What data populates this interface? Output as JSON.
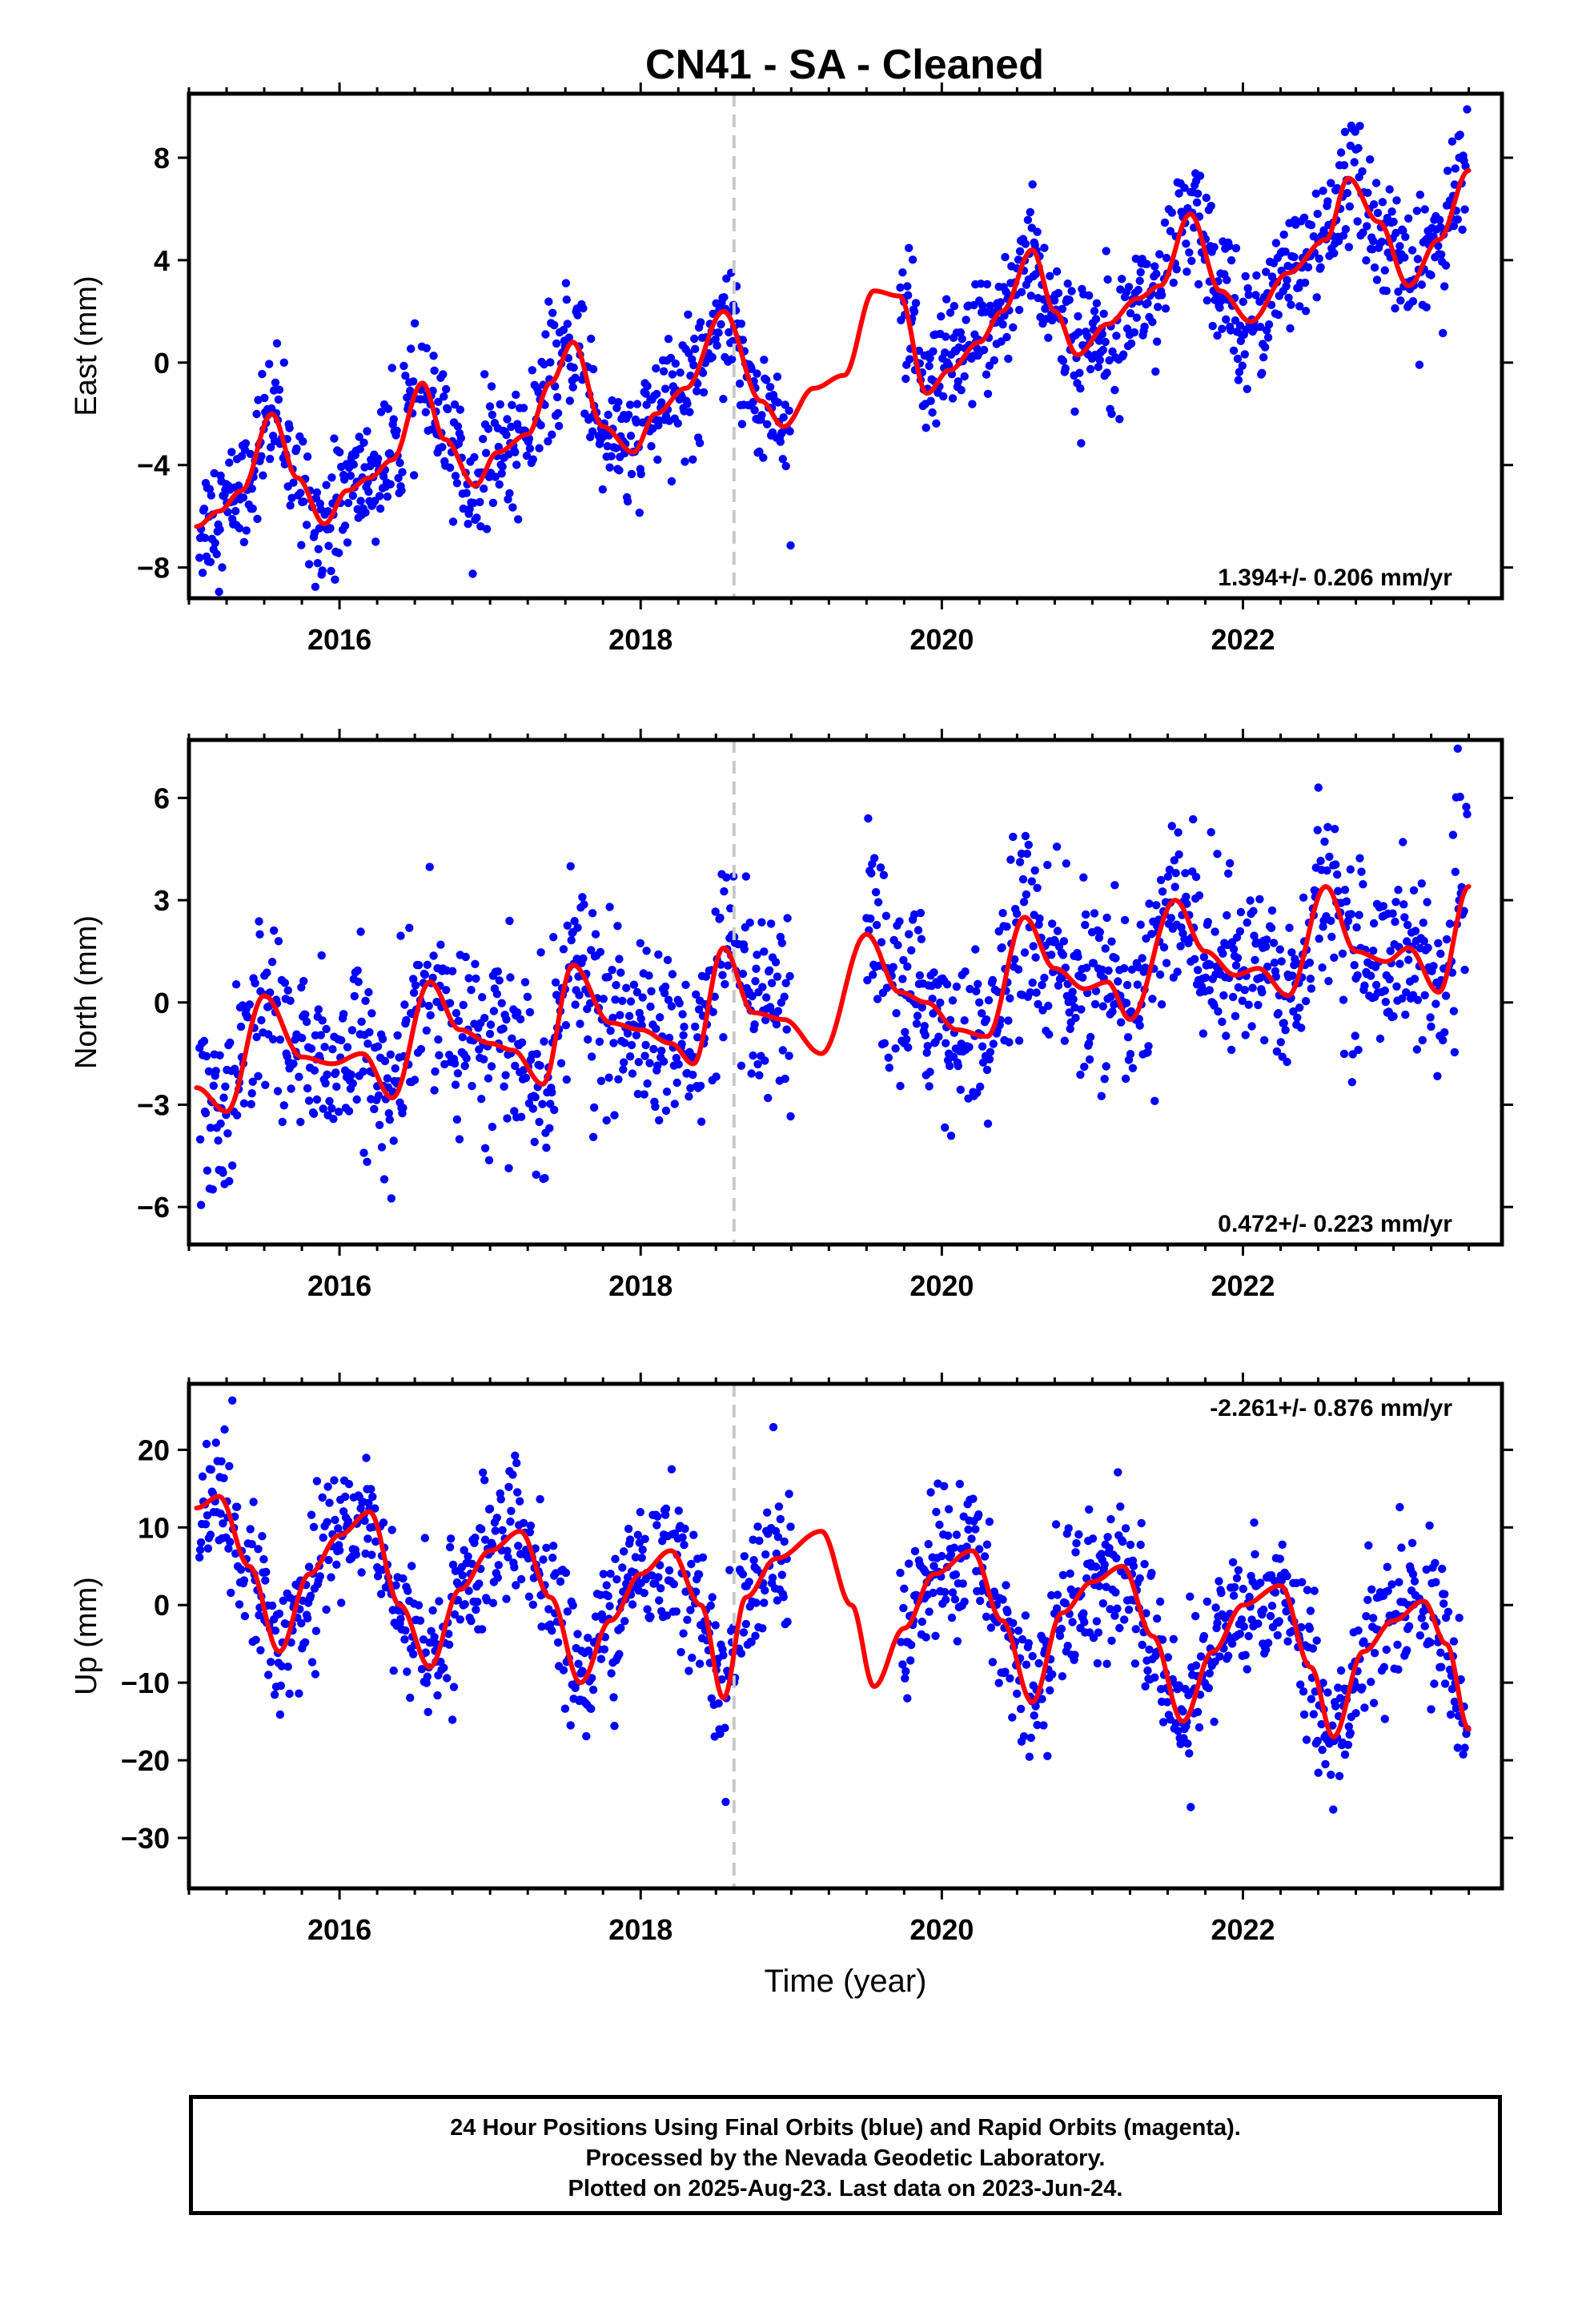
{
  "title": "CN41  - SA - Cleaned",
  "xlabel": "Time (year)",
  "footer": {
    "line1": "24 Hour Positions Using Final Orbits (blue) and Rapid Orbits (magenta).",
    "line2": "Processed by the Nevada Geodetic Laboratory.",
    "line3": "Plotted on 2025-Aug-23. Last data on 2023-Jun-24."
  },
  "colors": {
    "data": "#0000ff",
    "fit": "#ff0000",
    "event_line": "#c8c8c8",
    "frame": "#000000"
  },
  "chart_data": [
    {
      "type": "scatter",
      "component": "East",
      "ylabel": "East (mm)",
      "rate_text": "1.394+/- 0.206 mm/yr",
      "xlim": [
        2015.0,
        2023.72
      ],
      "ylim": [
        -9.2,
        10.5
      ],
      "yticks": [
        -8,
        -4,
        0,
        4,
        8
      ],
      "xticks": [
        2016,
        2018,
        2020,
        2022
      ],
      "event_line_x": 2018.62,
      "data_gap": [
        2019.0,
        2019.72
      ],
      "fit_curve": {
        "x": [
          2015.05,
          2015.2,
          2015.35,
          2015.55,
          2015.72,
          2015.9,
          2016.05,
          2016.2,
          2016.35,
          2016.55,
          2016.7,
          2016.9,
          2017.05,
          2017.25,
          2017.4,
          2017.55,
          2017.75,
          2017.95,
          2018.1,
          2018.3,
          2018.55,
          2018.8,
          2018.95,
          2019.15,
          2019.35,
          2019.55,
          2019.72,
          2019.9,
          2020.05,
          2020.25,
          2020.4,
          2020.6,
          2020.75,
          2020.9,
          2021.1,
          2021.3,
          2021.45,
          2021.65,
          2021.85,
          2022.05,
          2022.3,
          2022.55,
          2022.7,
          2022.9,
          2023.1,
          2023.3,
          2023.5
        ],
        "y": [
          -6.4,
          -5.8,
          -5.0,
          -2.0,
          -4.5,
          -6.3,
          -5.0,
          -4.5,
          -3.8,
          -0.8,
          -3.0,
          -4.8,
          -3.5,
          -2.8,
          -0.8,
          0.8,
          -2.5,
          -3.5,
          -2.0,
          -1.0,
          2.0,
          -1.5,
          -2.5,
          -1.0,
          -0.5,
          2.8,
          2.6,
          -1.2,
          -0.3,
          0.8,
          2.0,
          4.4,
          2.0,
          0.3,
          1.5,
          2.5,
          3.0,
          5.8,
          2.8,
          1.6,
          3.5,
          4.8,
          7.2,
          5.5,
          3.0,
          4.8,
          7.5
        ]
      },
      "scatter_trend": {
        "slope_mm_per_yr": 1.394,
        "noise_mm": 1.2
      }
    },
    {
      "type": "scatter",
      "component": "North",
      "ylabel": "North (mm)",
      "rate_text": "0.472+/- 0.223 mm/yr",
      "xlim": [
        2015.0,
        2023.72
      ],
      "ylim": [
        -7.1,
        7.7
      ],
      "yticks": [
        -6,
        -3,
        0,
        3,
        6
      ],
      "xticks": [
        2016,
        2018,
        2020,
        2022
      ],
      "event_line_x": 2018.62,
      "data_gap": [
        2019.0,
        2019.5
      ],
      "fit_curve": {
        "x": [
          2015.05,
          2015.25,
          2015.5,
          2015.75,
          2015.95,
          2016.15,
          2016.35,
          2016.6,
          2016.8,
          2017.0,
          2017.15,
          2017.35,
          2017.55,
          2017.8,
          2018.0,
          2018.2,
          2018.35,
          2018.55,
          2018.75,
          2018.95,
          2019.2,
          2019.5,
          2019.72,
          2019.9,
          2020.1,
          2020.3,
          2020.55,
          2020.75,
          2020.95,
          2021.1,
          2021.25,
          2021.55,
          2021.75,
          2021.95,
          2022.1,
          2022.3,
          2022.55,
          2022.75,
          2022.95,
          2023.1,
          2023.3,
          2023.5
        ],
        "y": [
          -2.5,
          -3.2,
          0.2,
          -1.6,
          -1.8,
          -1.5,
          -2.8,
          0.6,
          -0.8,
          -1.2,
          -1.4,
          -2.4,
          1.1,
          -0.6,
          -0.8,
          -1.2,
          -1.8,
          1.6,
          -0.3,
          -0.5,
          -1.5,
          2.0,
          0.3,
          0.0,
          -0.8,
          -1.0,
          2.5,
          1.0,
          0.4,
          0.6,
          -0.5,
          3.0,
          1.5,
          0.8,
          1.0,
          0.2,
          3.4,
          1.5,
          1.2,
          1.6,
          0.3,
          3.4
        ]
      },
      "scatter_trend": {
        "slope_mm_per_yr": 0.472,
        "noise_mm": 1.3
      }
    },
    {
      "type": "scatter",
      "component": "Up",
      "ylabel": "Up (mm)",
      "rate_text": "-2.261+/- 0.876 mm/yr",
      "xlim": [
        2015.0,
        2023.72
      ],
      "ylim": [
        -36.5,
        28.5
      ],
      "yticks": [
        -30,
        -20,
        -10,
        0,
        10,
        20
      ],
      "xticks": [
        2016,
        2018,
        2020,
        2022
      ],
      "event_line_x": 2018.62,
      "data_gap": [
        2019.0,
        2019.72
      ],
      "fit_curve": {
        "x": [
          2015.05,
          2015.2,
          2015.4,
          2015.6,
          2015.8,
          2016.0,
          2016.2,
          2016.4,
          2016.6,
          2016.8,
          2017.0,
          2017.2,
          2017.4,
          2017.6,
          2017.8,
          2018.0,
          2018.2,
          2018.4,
          2018.55,
          2018.7,
          2018.9,
          2019.2,
          2019.4,
          2019.55,
          2019.75,
          2019.95,
          2020.2,
          2020.4,
          2020.6,
          2020.8,
          2021.0,
          2021.2,
          2021.4,
          2021.6,
          2021.8,
          2022.0,
          2022.25,
          2022.45,
          2022.6,
          2022.8,
          2023.0,
          2023.2,
          2023.35,
          2023.5
        ],
        "y": [
          12.5,
          14.0,
          5.0,
          -6.0,
          4.0,
          9.0,
          12.0,
          0.0,
          -8.0,
          2.0,
          7.0,
          9.5,
          1.0,
          -10.0,
          -2.0,
          4.0,
          7.0,
          0.0,
          -12.0,
          1.0,
          6.0,
          9.5,
          0.0,
          -10.5,
          -3.0,
          4.0,
          7.0,
          -2.0,
          -12.5,
          -1.0,
          3.0,
          5.0,
          -4.0,
          -15.0,
          -6.0,
          0.0,
          2.5,
          -8.0,
          -17.0,
          -6.0,
          -2.0,
          0.5,
          -5.0,
          -16.0
        ]
      },
      "scatter_trend": {
        "slope_mm_per_yr": -2.261,
        "noise_mm": 4.5
      }
    }
  ]
}
